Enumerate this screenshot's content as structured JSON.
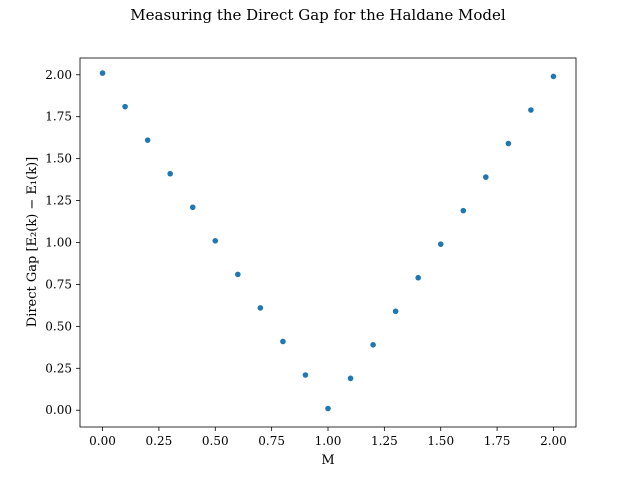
{
  "chart_data": {
    "type": "scatter",
    "title": "Measuring the Direct Gap for the Haldane Model",
    "xlabel": "M",
    "ylabel": "Direct Gap [E₂(k) − E₁(k)]",
    "xlim": [
      -0.1,
      2.1
    ],
    "ylim": [
      -0.1,
      2.1
    ],
    "x_ticks": [
      0.0,
      0.25,
      0.5,
      0.75,
      1.0,
      1.25,
      1.5,
      1.75,
      2.0
    ],
    "x_tick_labels": [
      "0.00",
      "0.25",
      "0.50",
      "0.75",
      "1.00",
      "1.25",
      "1.50",
      "1.75",
      "2.00"
    ],
    "y_ticks": [
      0.0,
      0.25,
      0.5,
      0.75,
      1.0,
      1.25,
      1.5,
      1.75,
      2.0
    ],
    "y_tick_labels": [
      "0.00",
      "0.25",
      "0.50",
      "0.75",
      "1.00",
      "1.25",
      "1.50",
      "1.75",
      "2.00"
    ],
    "grid": false,
    "marker_color": "#1f77b4",
    "x": [
      0.0,
      0.1,
      0.2,
      0.3,
      0.4,
      0.5,
      0.6,
      0.7,
      0.8,
      0.9,
      1.0,
      1.1,
      1.2,
      1.3,
      1.4,
      1.5,
      1.6,
      1.7,
      1.8,
      1.9,
      2.0
    ],
    "y": [
      2.01,
      1.81,
      1.61,
      1.41,
      1.21,
      1.01,
      0.81,
      0.61,
      0.41,
      0.21,
      0.01,
      0.19,
      0.39,
      0.59,
      0.79,
      0.99,
      1.19,
      1.39,
      1.59,
      1.79,
      1.99
    ]
  }
}
